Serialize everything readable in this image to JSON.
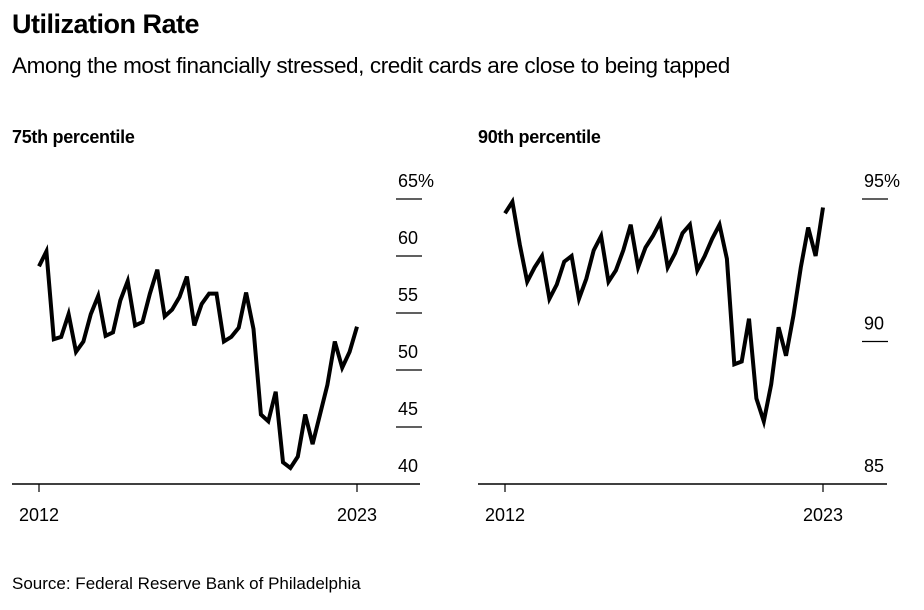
{
  "header": {
    "title": "Utilization Rate",
    "subtitle": "Among the most financially stressed, credit cards are close to being tapped"
  },
  "footer": {
    "source": "Source: Federal Reserve Bank of Philadelphia"
  },
  "colors": {
    "line": "#000000",
    "axis": "#000000",
    "background": "#ffffff"
  },
  "chart_data": [
    {
      "type": "line",
      "title": "75th percentile",
      "xlabel": "",
      "ylabel": "",
      "x_tick_labels": [
        "2012",
        "2023"
      ],
      "x_range": [
        2012,
        2023
      ],
      "y_tick_labels": [
        "40",
        "45",
        "50",
        "55",
        "60",
        "65%"
      ],
      "y_ticks": [
        40,
        45,
        50,
        55,
        60,
        65
      ],
      "ylim": [
        40,
        65
      ],
      "y_axis_position": "right",
      "grid": false,
      "series": [
        {
          "name": "75th percentile",
          "frequency": "quarterly",
          "values": [
            59.1,
            60.4,
            52.7,
            52.9,
            54.9,
            51.6,
            52.5,
            54.9,
            56.5,
            53.0,
            53.3,
            56.1,
            57.8,
            53.9,
            54.2,
            56.7,
            58.8,
            54.7,
            55.3,
            56.4,
            58.2,
            53.9,
            55.8,
            56.7,
            56.7,
            52.5,
            52.9,
            53.7,
            56.8,
            53.6,
            46.1,
            45.5,
            48.1,
            41.9,
            41.4,
            42.4,
            46.1,
            43.5,
            46.1,
            48.7,
            52.5,
            50.2,
            51.6,
            53.8
          ]
        }
      ]
    },
    {
      "type": "line",
      "title": "90th percentile",
      "xlabel": "",
      "ylabel": "",
      "x_tick_labels": [
        "2012",
        "2023"
      ],
      "x_range": [
        2012,
        2023
      ],
      "y_tick_labels": [
        "85",
        "90",
        "95%"
      ],
      "y_ticks": [
        85,
        90,
        95
      ],
      "ylim": [
        85,
        95
      ],
      "y_axis_position": "right",
      "grid": false,
      "series": [
        {
          "name": "90th percentile",
          "frequency": "quarterly",
          "values": [
            94.5,
            94.9,
            93.4,
            92.1,
            92.6,
            93.0,
            91.5,
            92.0,
            92.8,
            93.0,
            91.5,
            92.2,
            93.2,
            93.7,
            92.1,
            92.5,
            93.2,
            94.1,
            92.6,
            93.3,
            93.7,
            94.2,
            92.6,
            93.1,
            93.8,
            94.1,
            92.5,
            93.0,
            93.6,
            94.1,
            92.9,
            89.2,
            89.3,
            90.8,
            88.0,
            87.2,
            88.5,
            90.5,
            89.5,
            90.9,
            92.6,
            94.0,
            93.0,
            94.7
          ]
        }
      ]
    }
  ]
}
